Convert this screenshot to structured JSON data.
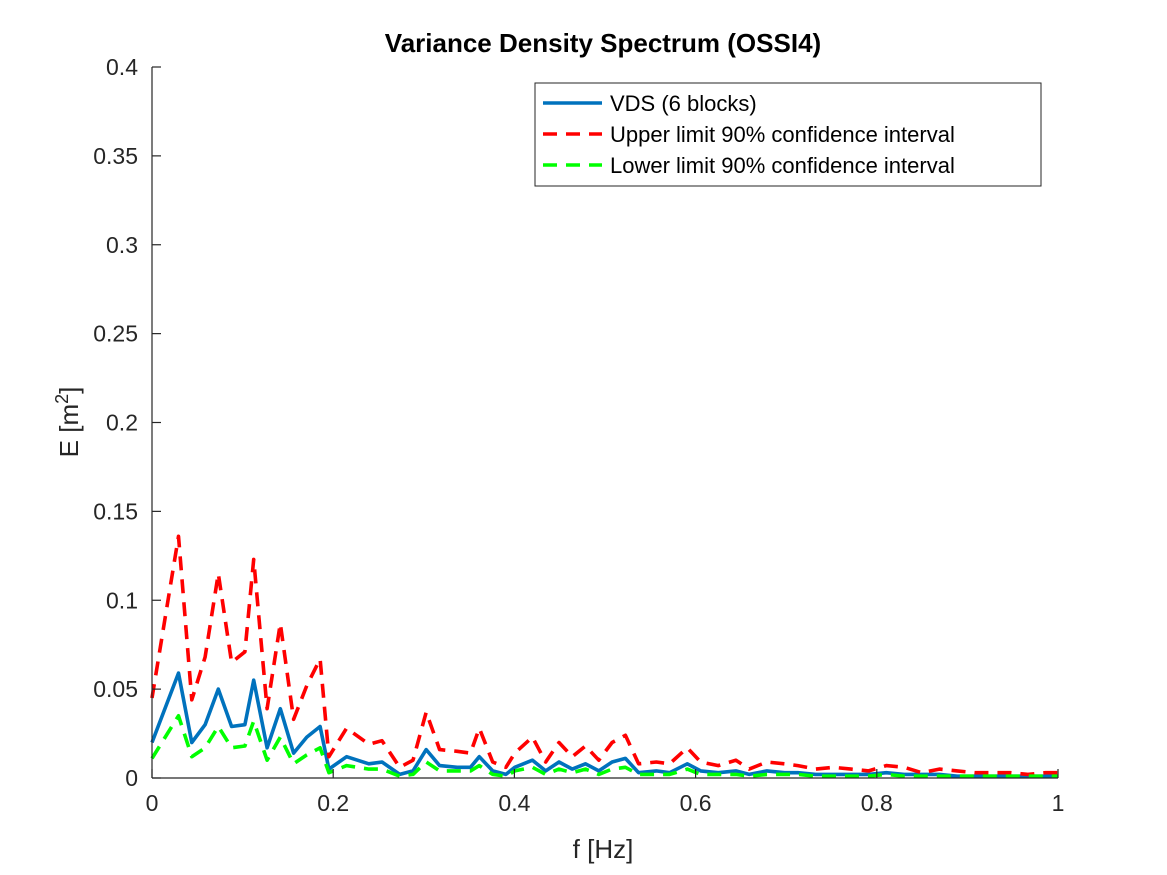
{
  "chart_data": {
    "type": "line",
    "title": "Variance Density Spectrum (OSSI4)",
    "xlabel": "f [Hz]",
    "ylabel_main": "E [m",
    "ylabel_sup": "2",
    "ylabel_end": "]",
    "xlim": [
      0,
      1
    ],
    "ylim": [
      0,
      0.4
    ],
    "xticks": [
      0,
      0.2,
      0.4,
      0.6,
      0.8,
      1
    ],
    "xtick_labels": [
      "0",
      "0.2",
      "0.4",
      "0.6",
      "0.8",
      "1"
    ],
    "yticks": [
      0,
      0.05,
      0.1,
      0.15,
      0.2,
      0.25,
      0.3,
      0.35,
      0.4
    ],
    "ytick_labels": [
      "0",
      "0.05",
      "0.1",
      "0.15",
      "0.2",
      "0.25",
      "0.3",
      "0.35",
      "0.4"
    ],
    "grid": false,
    "legend_position": "top-right",
    "x": [
      0,
      0.0293,
      0.0439,
      0.0586,
      0.0732,
      0.0879,
      0.1025,
      0.1123,
      0.127,
      0.1416,
      0.1563,
      0.1709,
      0.1855,
      0.1953,
      0.2148,
      0.2393,
      0.2539,
      0.2734,
      0.2881,
      0.3027,
      0.3174,
      0.3369,
      0.3516,
      0.3613,
      0.376,
      0.3906,
      0.4004,
      0.4199,
      0.4346,
      0.4492,
      0.4639,
      0.4785,
      0.4932,
      0.5078,
      0.5225,
      0.5371,
      0.5566,
      0.5713,
      0.5908,
      0.6055,
      0.625,
      0.6445,
      0.6592,
      0.6787,
      0.6982,
      0.7129,
      0.7324,
      0.752,
      0.7715,
      0.791,
      0.8105,
      0.8301,
      0.8496,
      0.8691,
      0.8887,
      0.9082,
      0.9277,
      0.9473,
      0.9668,
      0.9863,
      1.0
    ],
    "series": [
      {
        "name": "VDS (6 blocks)",
        "color": "#0072BD",
        "dash": "solid",
        "values": [
          0.02,
          0.059,
          0.02,
          0.03,
          0.05,
          0.029,
          0.03,
          0.055,
          0.017,
          0.039,
          0.014,
          0.023,
          0.029,
          0.005,
          0.012,
          0.008,
          0.009,
          0.002,
          0.004,
          0.016,
          0.007,
          0.006,
          0.006,
          0.012,
          0.004,
          0.002,
          0.006,
          0.01,
          0.004,
          0.009,
          0.005,
          0.008,
          0.004,
          0.009,
          0.011,
          0.003,
          0.004,
          0.003,
          0.008,
          0.004,
          0.003,
          0.004,
          0.002,
          0.004,
          0.003,
          0.003,
          0.002,
          0.002,
          0.002,
          0.002,
          0.003,
          0.002,
          0.002,
          0.002,
          0.001,
          0.001,
          0.001,
          0.001,
          0.001,
          0.001,
          0.001
        ]
      },
      {
        "name": "Upper limit 90% confidence interval",
        "color": "#FF0000",
        "dash": "dashed",
        "values": [
          0.045,
          0.136,
          0.044,
          0.068,
          0.115,
          0.065,
          0.071,
          0.123,
          0.039,
          0.087,
          0.033,
          0.052,
          0.067,
          0.012,
          0.028,
          0.019,
          0.021,
          0.006,
          0.01,
          0.037,
          0.016,
          0.015,
          0.014,
          0.028,
          0.009,
          0.006,
          0.014,
          0.023,
          0.009,
          0.02,
          0.012,
          0.018,
          0.01,
          0.02,
          0.024,
          0.008,
          0.009,
          0.008,
          0.017,
          0.009,
          0.007,
          0.01,
          0.005,
          0.009,
          0.008,
          0.007,
          0.005,
          0.006,
          0.005,
          0.004,
          0.007,
          0.006,
          0.003,
          0.005,
          0.004,
          0.003,
          0.003,
          0.003,
          0.002,
          0.003,
          0.003
        ]
      },
      {
        "name": "Lower limit 90% confidence interval",
        "color": "#00FF00",
        "dash": "dashed",
        "values": [
          0.011,
          0.035,
          0.012,
          0.017,
          0.029,
          0.017,
          0.018,
          0.032,
          0.01,
          0.023,
          0.008,
          0.013,
          0.017,
          0.003,
          0.007,
          0.005,
          0.005,
          0.001,
          0.002,
          0.009,
          0.004,
          0.004,
          0.004,
          0.007,
          0.002,
          0.001,
          0.004,
          0.006,
          0.002,
          0.005,
          0.003,
          0.005,
          0.002,
          0.005,
          0.006,
          0.002,
          0.002,
          0.002,
          0.005,
          0.002,
          0.002,
          0.002,
          0.001,
          0.002,
          0.002,
          0.002,
          0.001,
          0.001,
          0.001,
          0.001,
          0.002,
          0.001,
          0.001,
          0.001,
          0.001,
          0.001,
          0.001,
          0.001,
          0.001,
          0.001,
          0.001
        ]
      }
    ]
  }
}
